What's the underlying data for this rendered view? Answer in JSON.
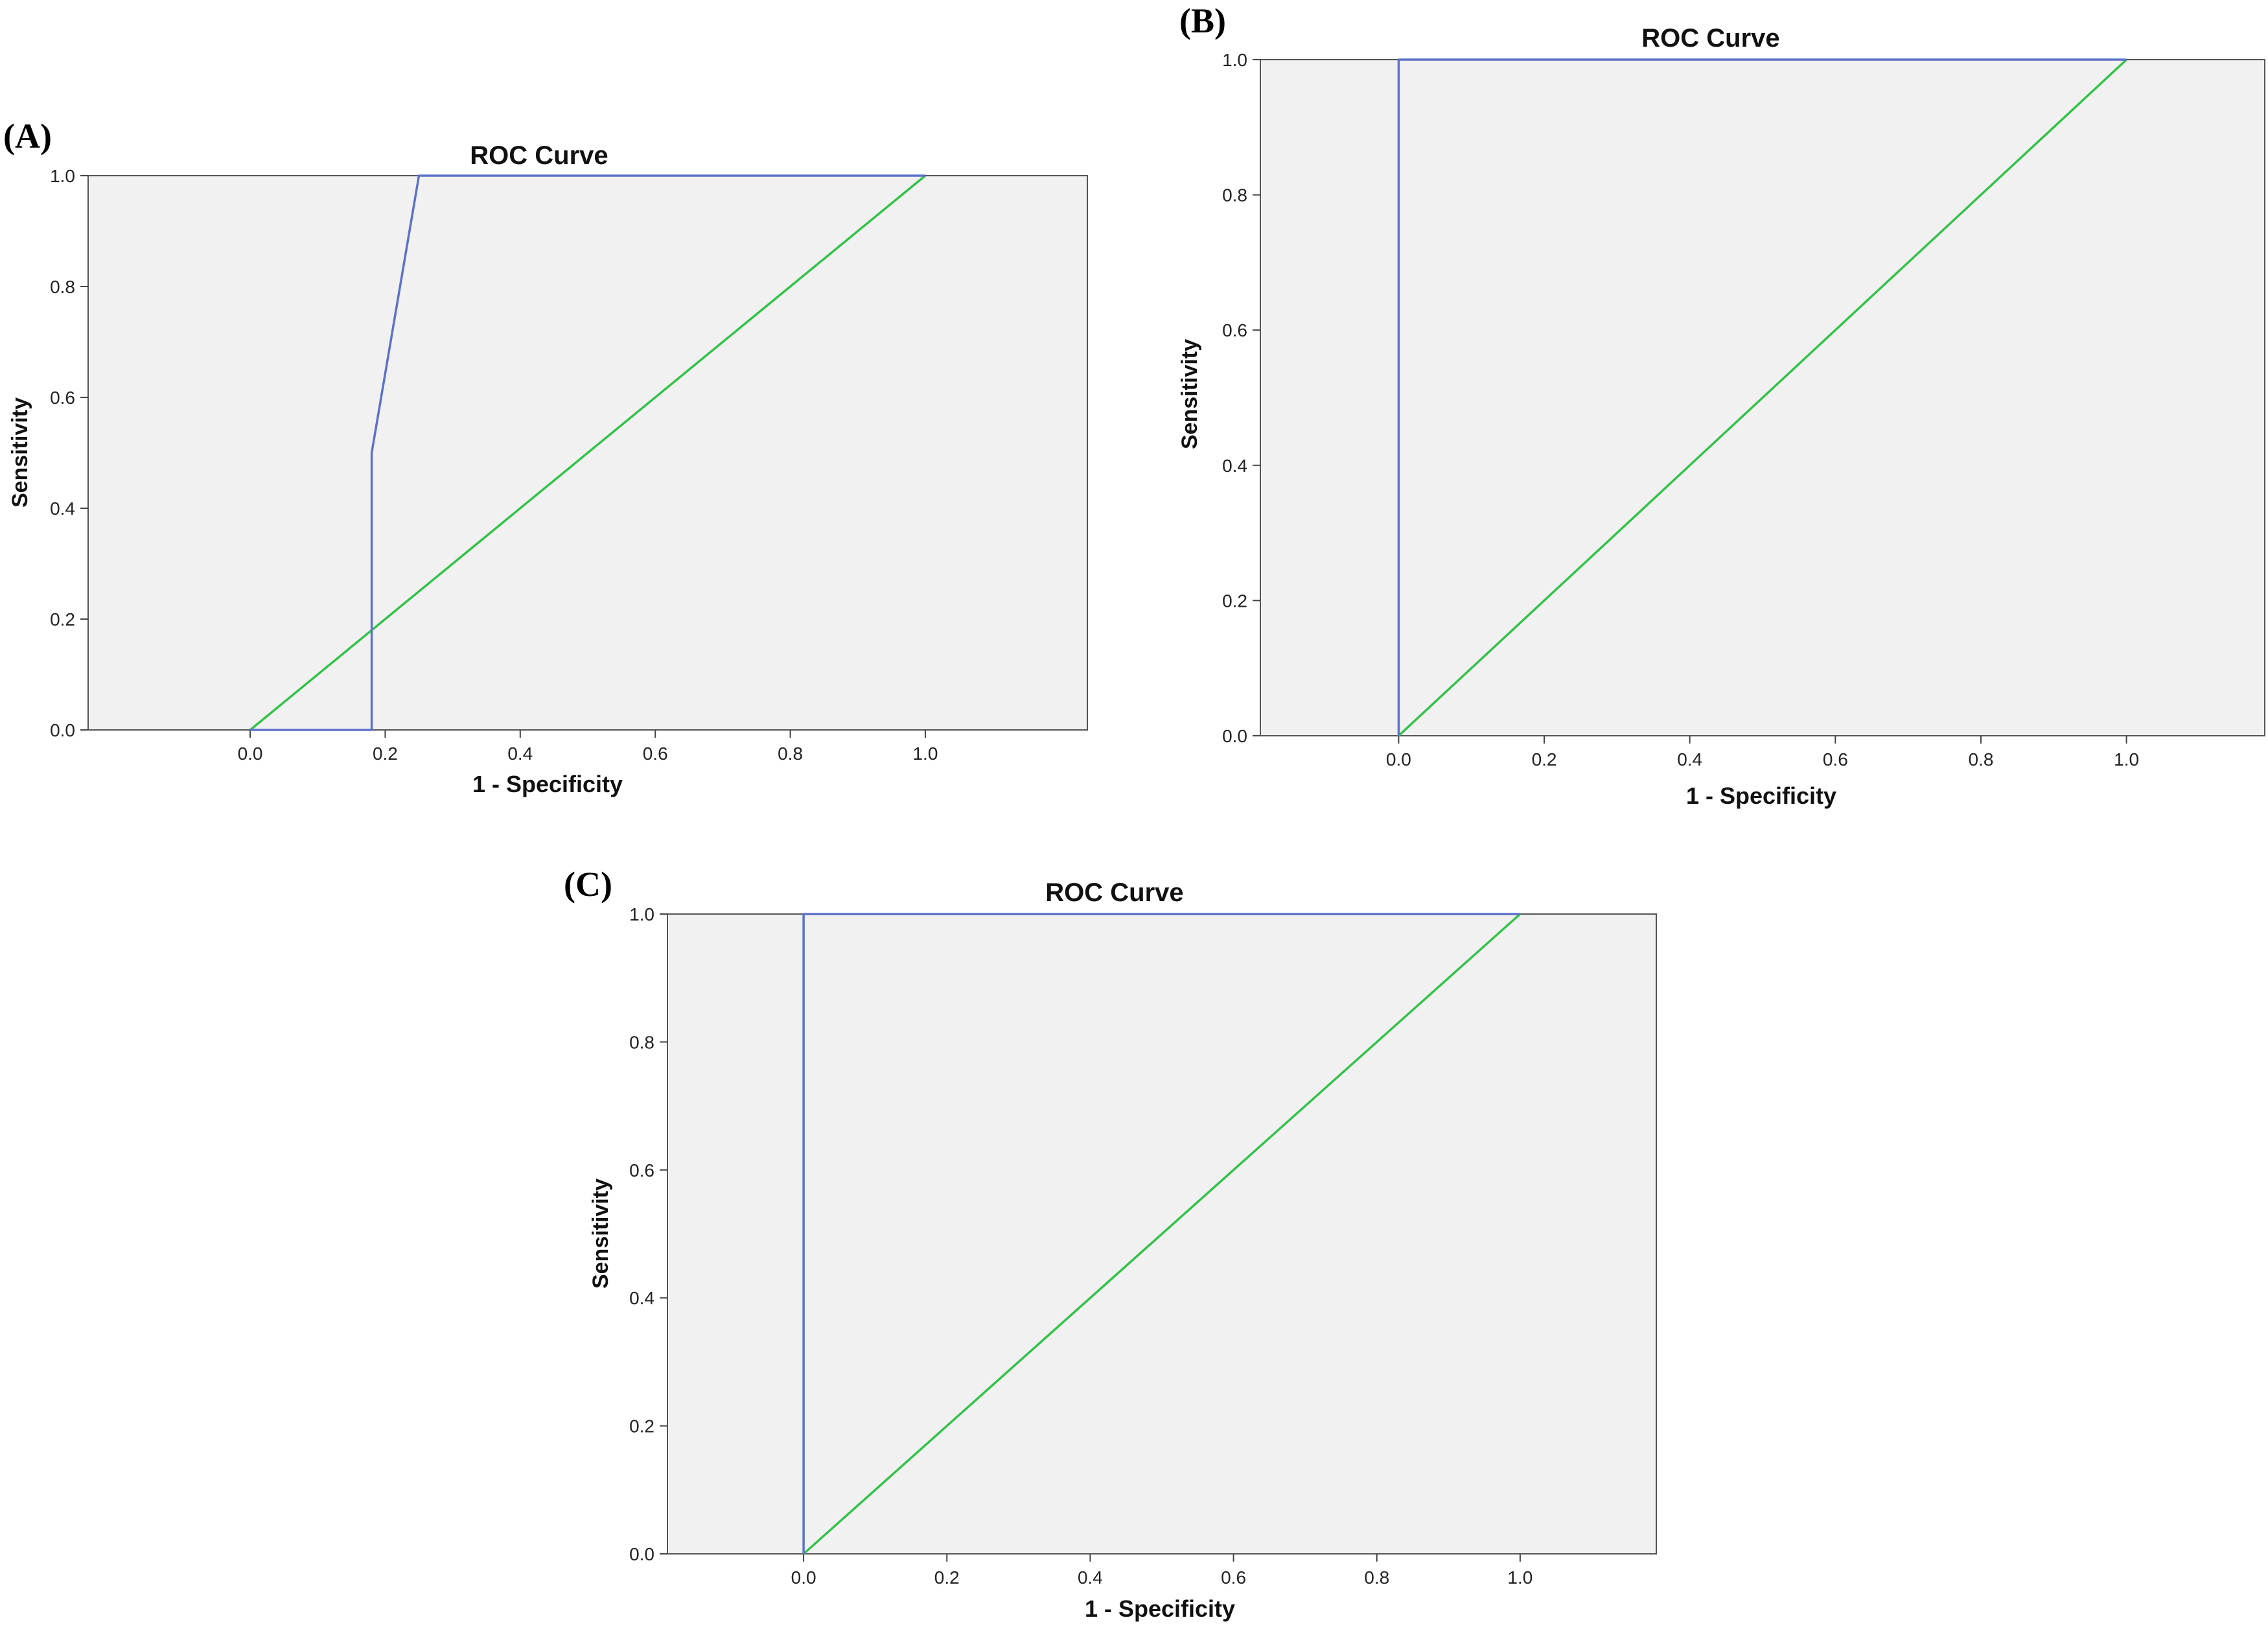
{
  "figure": {
    "panels": [
      {
        "letter": "(A)"
      },
      {
        "letter": "(B)"
      },
      {
        "letter": "(C)"
      }
    ]
  },
  "chart_data": [
    {
      "type": "line",
      "title": "ROC Curve",
      "xlabel": "1 - Specificity",
      "ylabel": "Sensitivity",
      "xlim": [
        -0.24,
        1.24
      ],
      "ylim": [
        0,
        1
      ],
      "xticks": [
        "0.0",
        "0.2",
        "0.4",
        "0.6",
        "0.8",
        "1.0"
      ],
      "yticks": [
        "0.0",
        "0.2",
        "0.4",
        "0.6",
        "0.8",
        "1.0"
      ],
      "background_color": "#f1f1f1",
      "series": [
        {
          "color": "#5d72c8",
          "x": [
            0.0,
            0.18,
            0.18,
            0.25,
            1.0
          ],
          "y": [
            0.0,
            0.0,
            0.5,
            1.0,
            1.0
          ]
        },
        {
          "color": "#34c24a",
          "x": [
            0.0,
            1.0
          ],
          "y": [
            0.0,
            1.0
          ]
        }
      ]
    },
    {
      "type": "line",
      "title": "ROC Curve",
      "xlabel": "1 - Specificity",
      "ylabel": "Sensitivity",
      "xlim": [
        -0.19,
        1.19
      ],
      "ylim": [
        0,
        1
      ],
      "xticks": [
        "0.0",
        "0.2",
        "0.4",
        "0.6",
        "0.8",
        "1.0"
      ],
      "yticks": [
        "0.0",
        "0.2",
        "0.4",
        "0.6",
        "0.8",
        "1.0"
      ],
      "background_color": "#f1f1f1",
      "series": [
        {
          "color": "#5d72c8",
          "x": [
            0.0,
            0.0,
            1.0
          ],
          "y": [
            0.0,
            1.0,
            1.0
          ]
        },
        {
          "color": "#34c24a",
          "x": [
            0.0,
            1.0
          ],
          "y": [
            0.0,
            1.0
          ]
        }
      ]
    },
    {
      "type": "line",
      "title": "ROC Curve",
      "xlabel": "1 - Specificity",
      "ylabel": "Sensitivity",
      "xlim": [
        -0.19,
        1.19
      ],
      "ylim": [
        0,
        1
      ],
      "xticks": [
        "0.0",
        "0.2",
        "0.4",
        "0.6",
        "0.8",
        "1.0"
      ],
      "yticks": [
        "0.0",
        "0.2",
        "0.4",
        "0.6",
        "0.8",
        "1.0"
      ],
      "background_color": "#f1f1f1",
      "series": [
        {
          "color": "#5d72c8",
          "x": [
            0.0,
            0.0,
            1.0
          ],
          "y": [
            0.0,
            1.0,
            1.0
          ]
        },
        {
          "color": "#34c24a",
          "x": [
            0.0,
            1.0
          ],
          "y": [
            0.0,
            1.0
          ]
        }
      ]
    }
  ]
}
